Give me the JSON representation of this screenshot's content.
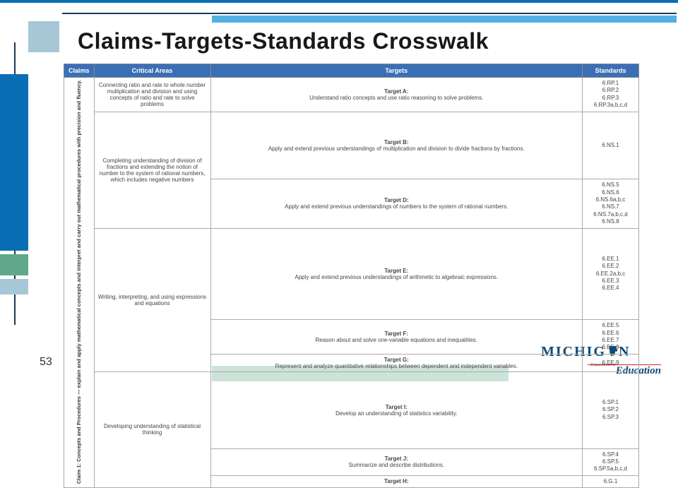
{
  "title": "Claims-Targets-Standards Crosswalk",
  "page_number": "53",
  "columns": [
    "Claims",
    "Critical Areas",
    "Targets",
    "Standards"
  ],
  "claim_vertical": "Claim 1: Concepts and Procedures — explain and apply mathematical concepts and interpret and carry out mathematical procedures with precision and fluency.",
  "rows": [
    {
      "critical": "Connecting ratio and rate to whole number multiplication and division and using concepts of ratio and rate to solve problems",
      "critical_rowspan": 1,
      "target_label": "Target A:",
      "target_text": "Understand ratio concepts and use ratio reasoning to solve problems.",
      "standards": "6.RP.1\n6.RP.2\n6.RP.3\n6.RP.3a,b,c,d"
    },
    {
      "critical": "Completing understanding of division of fractions and extending the notion of number to the system of rational numbers, which includes negative numbers",
      "critical_rowspan": 2,
      "target_label": "Target B:",
      "target_text": "Apply and extend previous understandings of multiplication and division to divide fractions by fractions.",
      "standards": "6.NS.1"
    },
    {
      "target_label": "Target D:",
      "target_text": "Apply and extend previous understandings of numbers to the system of rational numbers.",
      "standards": "6.NS.5\n6.NS.6\n6.NS.6a,b,c\n6.NS.7\n6.NS.7a,b,c,d\n6.NS.8"
    },
    {
      "critical": "Writing, interpreting, and using expressions and equations",
      "critical_rowspan": 3,
      "target_label": "Target E:",
      "target_text": "Apply and extend previous understandings of arithmetic to algebraic expressions.",
      "standards": "6.EE.1\n6.EE.2\n6.EE.2a,b,c\n6.EE.3\n6.EE.4"
    },
    {
      "target_label": "Target F:",
      "target_text": "Reason about and solve one-variable equations and inequalities.",
      "standards": "6.EE.5\n6.EE.6\n6.EE.7\n6.EE.8"
    },
    {
      "target_label": "Target G:",
      "target_text": "Represent and analyze quantitative relationships between dependent and independent variables.",
      "standards": "6.EE.9"
    },
    {
      "critical": "Developing understanding of statistical thinking",
      "critical_rowspan": 3,
      "target_label": "Target I:",
      "target_text": "Develop an understanding of statistics variability.",
      "standards": "6.SP.1\n6.SP.2\n6.SP.3"
    },
    {
      "target_label": "Target J:",
      "target_text": "Summarize and describe distributions.",
      "standards": "6.SP.4\n6.SP.5\n6.SP.5a,b,c,d"
    },
    {
      "target_label": "Target H:",
      "target_text": "",
      "standards": "6.G.1"
    }
  ],
  "logo": {
    "main": "MICHIG",
    "after_icon": "N",
    "dept": "Department of",
    "sub": "Education",
    "icon_color_top": "#0b4a7a",
    "icon_color_bottom": "#3a8a4a"
  },
  "colors": {
    "header_bg": "#3a6fb5",
    "header_fg": "#ffffff",
    "border": "#aaaaaa",
    "accent_left": "#0a6eb4",
    "accent_pale": "#a7c7d6",
    "accent_green": "#5fa88c"
  }
}
